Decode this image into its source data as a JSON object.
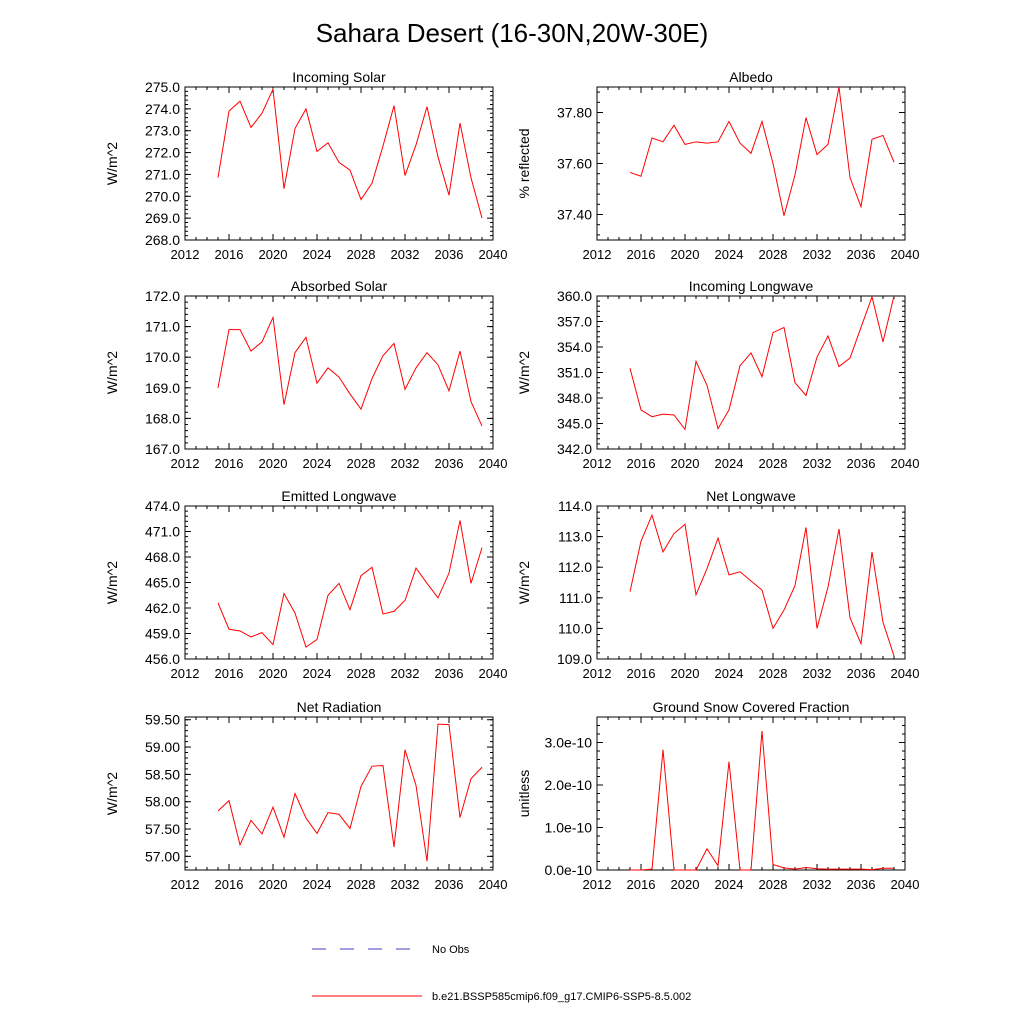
{
  "figure": {
    "title": "Sahara Desert (16-30N,20W-30E)"
  },
  "legend": {
    "entries": [
      {
        "label": "No Obs",
        "color": "#3f3fbf",
        "style": "dashed"
      },
      {
        "label": "b.e21.BSSP585cmip6.f09_g17.CMIP6-SSP5-8.5.002",
        "color": "#ff0000",
        "style": "solid"
      }
    ]
  },
  "chart_data": [
    {
      "type": "line",
      "title": "Incoming Solar",
      "ylabel": "W/m^2",
      "xlim": [
        2012,
        2040
      ],
      "ylim": [
        268,
        275
      ],
      "x_ticks": [
        2012,
        2016,
        2020,
        2024,
        2028,
        2032,
        2036,
        2040
      ],
      "y_ticks": [
        "268.0",
        "269.0",
        "270.0",
        "271.0",
        "272.0",
        "273.0",
        "274.0",
        "275.0"
      ],
      "y_tick_values": [
        268,
        269,
        270,
        271,
        272,
        273,
        274,
        275
      ],
      "series": [
        {
          "color": "#ff0000",
          "x": [
            2015,
            2016,
            2017,
            2018,
            2019,
            2020,
            2021,
            2022,
            2023,
            2024,
            2025,
            2026,
            2027,
            2028,
            2029,
            2030,
            2031,
            2032,
            2033,
            2034,
            2035,
            2036,
            2037,
            2038,
            2039
          ],
          "values": [
            270.85,
            273.9,
            274.35,
            273.15,
            273.8,
            274.9,
            270.35,
            273.1,
            274.0,
            272.05,
            272.45,
            271.55,
            271.2,
            269.85,
            270.6,
            272.3,
            274.15,
            270.95,
            272.35,
            274.1,
            271.8,
            270.05,
            273.35,
            270.85,
            269.0
          ]
        }
      ]
    },
    {
      "type": "line",
      "title": "Albedo",
      "ylabel": "% reflected",
      "xlim": [
        2012,
        2040
      ],
      "ylim": [
        37.3,
        37.9
      ],
      "x_ticks": [
        2012,
        2016,
        2020,
        2024,
        2028,
        2032,
        2036,
        2040
      ],
      "y_ticks": [
        "37.40",
        "37.60",
        "37.80"
      ],
      "y_tick_values": [
        37.4,
        37.6,
        37.8
      ],
      "series": [
        {
          "color": "#ff0000",
          "x": [
            2015,
            2016,
            2017,
            2018,
            2019,
            2020,
            2021,
            2022,
            2023,
            2024,
            2025,
            2026,
            2027,
            2028,
            2029,
            2030,
            2031,
            2032,
            2033,
            2034,
            2035,
            2036,
            2037,
            2038,
            2039
          ],
          "values": [
            37.565,
            37.55,
            37.7,
            37.685,
            37.75,
            37.675,
            37.685,
            37.68,
            37.685,
            37.765,
            37.68,
            37.64,
            37.765,
            37.6,
            37.395,
            37.555,
            37.78,
            37.635,
            37.675,
            37.9,
            37.545,
            37.43,
            37.695,
            37.71,
            37.605
          ]
        }
      ]
    },
    {
      "type": "line",
      "title": "Absorbed Solar",
      "ylabel": "W/m^2",
      "xlim": [
        2012,
        2040
      ],
      "ylim": [
        167,
        172
      ],
      "x_ticks": [
        2012,
        2016,
        2020,
        2024,
        2028,
        2032,
        2036,
        2040
      ],
      "y_ticks": [
        "167.0",
        "168.0",
        "169.0",
        "170.0",
        "171.0",
        "172.0"
      ],
      "y_tick_values": [
        167,
        168,
        169,
        170,
        171,
        172
      ],
      "series": [
        {
          "color": "#ff0000",
          "x": [
            2015,
            2016,
            2017,
            2018,
            2019,
            2020,
            2021,
            2022,
            2023,
            2024,
            2025,
            2026,
            2027,
            2028,
            2029,
            2030,
            2031,
            2032,
            2033,
            2034,
            2035,
            2036,
            2037,
            2038,
            2039
          ],
          "values": [
            169.0,
            170.9,
            170.9,
            170.2,
            170.5,
            171.3,
            168.45,
            170.15,
            170.65,
            169.15,
            169.65,
            169.35,
            168.8,
            168.3,
            169.3,
            170.05,
            170.45,
            168.95,
            169.65,
            170.15,
            169.75,
            168.9,
            170.2,
            168.55,
            167.75
          ]
        }
      ]
    },
    {
      "type": "line",
      "title": "Incoming Longwave",
      "ylabel": "W/m^2",
      "xlim": [
        2012,
        2040
      ],
      "ylim": [
        342,
        360
      ],
      "x_ticks": [
        2012,
        2016,
        2020,
        2024,
        2028,
        2032,
        2036,
        2040
      ],
      "y_ticks": [
        "342.0",
        "345.0",
        "348.0",
        "351.0",
        "354.0",
        "357.0",
        "360.0"
      ],
      "y_tick_values": [
        342,
        345,
        348,
        351,
        354,
        357,
        360
      ],
      "series": [
        {
          "color": "#ff0000",
          "x": [
            2015,
            2016,
            2017,
            2018,
            2019,
            2020,
            2021,
            2022,
            2023,
            2024,
            2025,
            2026,
            2027,
            2028,
            2029,
            2030,
            2031,
            2032,
            2033,
            2034,
            2035,
            2036,
            2037,
            2038,
            2039
          ],
          "values": [
            351.5,
            346.6,
            345.8,
            346.1,
            346.0,
            344.3,
            352.3,
            349.5,
            344.4,
            346.6,
            351.8,
            353.3,
            350.5,
            355.7,
            356.3,
            349.8,
            348.3,
            352.8,
            355.3,
            351.7,
            352.7,
            356.3,
            359.9,
            354.6,
            360.0
          ]
        }
      ]
    },
    {
      "type": "line",
      "title": "Emitted Longwave",
      "ylabel": "W/m^2",
      "xlim": [
        2012,
        2040
      ],
      "ylim": [
        456,
        474
      ],
      "x_ticks": [
        2012,
        2016,
        2020,
        2024,
        2028,
        2032,
        2036,
        2040
      ],
      "y_ticks": [
        "456.0",
        "459.0",
        "462.0",
        "465.0",
        "468.0",
        "471.0",
        "474.0"
      ],
      "y_tick_values": [
        456,
        459,
        462,
        465,
        468,
        471,
        474
      ],
      "series": [
        {
          "color": "#ff0000",
          "x": [
            2015,
            2016,
            2017,
            2018,
            2019,
            2020,
            2021,
            2022,
            2023,
            2024,
            2025,
            2026,
            2027,
            2028,
            2029,
            2030,
            2031,
            2032,
            2033,
            2034,
            2035,
            2036,
            2037,
            2038,
            2039
          ],
          "values": [
            462.6,
            459.5,
            459.3,
            458.6,
            459.1,
            457.7,
            463.7,
            461.4,
            457.4,
            458.3,
            463.5,
            464.9,
            461.8,
            465.8,
            466.8,
            461.3,
            461.6,
            462.9,
            466.7,
            464.9,
            463.2,
            466.1,
            472.3,
            464.9,
            469.1
          ]
        }
      ]
    },
    {
      "type": "line",
      "title": "Net Longwave",
      "ylabel": "W/m^2",
      "xlim": [
        2012,
        2040
      ],
      "ylim": [
        109,
        114
      ],
      "x_ticks": [
        2012,
        2016,
        2020,
        2024,
        2028,
        2032,
        2036,
        2040
      ],
      "y_ticks": [
        "109.0",
        "110.0",
        "111.0",
        "112.0",
        "113.0",
        "114.0"
      ],
      "y_tick_values": [
        109,
        110,
        111,
        112,
        113,
        114
      ],
      "series": [
        {
          "color": "#ff0000",
          "x": [
            2015,
            2016,
            2017,
            2018,
            2019,
            2020,
            2021,
            2022,
            2023,
            2024,
            2025,
            2026,
            2027,
            2028,
            2029,
            2030,
            2031,
            2032,
            2033,
            2034,
            2035,
            2036,
            2037,
            2038,
            2039
          ],
          "values": [
            111.2,
            112.85,
            113.7,
            112.5,
            113.1,
            113.4,
            111.1,
            111.95,
            112.95,
            111.75,
            111.85,
            111.55,
            111.25,
            110.0,
            110.6,
            111.4,
            113.3,
            110.0,
            111.35,
            113.25,
            110.35,
            109.5,
            112.5,
            110.2,
            109.1
          ]
        }
      ]
    },
    {
      "type": "line",
      "title": "Net Radiation",
      "ylabel": "W/m^2",
      "xlim": [
        2012,
        2040
      ],
      "ylim": [
        56.75,
        59.55
      ],
      "x_ticks": [
        2012,
        2016,
        2020,
        2024,
        2028,
        2032,
        2036,
        2040
      ],
      "y_ticks": [
        "57.00",
        "57.50",
        "58.00",
        "58.50",
        "59.00",
        "59.50"
      ],
      "y_tick_values": [
        57.0,
        57.5,
        58.0,
        58.5,
        59.0,
        59.5
      ],
      "series": [
        {
          "color": "#ff0000",
          "x": [
            2015,
            2016,
            2017,
            2018,
            2019,
            2020,
            2021,
            2022,
            2023,
            2024,
            2025,
            2026,
            2027,
            2028,
            2029,
            2030,
            2031,
            2032,
            2033,
            2034,
            2035,
            2036,
            2037,
            2038,
            2039
          ],
          "values": [
            57.83,
            58.02,
            57.21,
            57.66,
            57.41,
            57.9,
            57.35,
            58.15,
            57.7,
            57.42,
            57.8,
            57.77,
            57.51,
            58.28,
            58.65,
            58.66,
            57.17,
            58.95,
            58.3,
            56.91,
            59.42,
            59.41,
            57.71,
            58.42,
            58.63
          ]
        }
      ]
    },
    {
      "type": "line",
      "title": "Ground Snow Covered Fraction",
      "ylabel": "unitless",
      "xlim": [
        2012,
        2040
      ],
      "ylim": [
        0,
        3.6e-10
      ],
      "x_ticks": [
        2012,
        2016,
        2020,
        2024,
        2028,
        2032,
        2036,
        2040
      ],
      "y_ticks": [
        "0.0e-10",
        "1.0e-10",
        "2.0e-10",
        "3.0e-10"
      ],
      "y_tick_values": [
        0,
        1e-10,
        2e-10,
        3e-10
      ],
      "series": [
        {
          "color": "#ff0000",
          "x": [
            2015,
            2016,
            2017,
            2018,
            2019,
            2020,
            2021,
            2022,
            2023,
            2024,
            2025,
            2026,
            2027,
            2028,
            2029,
            2030,
            2031,
            2032,
            2033,
            2034,
            2035,
            2036,
            2037,
            2038,
            2039
          ],
          "values": [
            0,
            0,
            2e-12,
            2.83e-10,
            0,
            0,
            0,
            5e-11,
            1e-11,
            2.55e-10,
            0,
            0,
            3.27e-10,
            1.3e-11,
            5e-12,
            2e-12,
            6e-12,
            3e-12,
            2e-12,
            2e-12,
            2e-12,
            2e-12,
            1e-12,
            4e-12,
            4e-12
          ]
        }
      ]
    }
  ]
}
